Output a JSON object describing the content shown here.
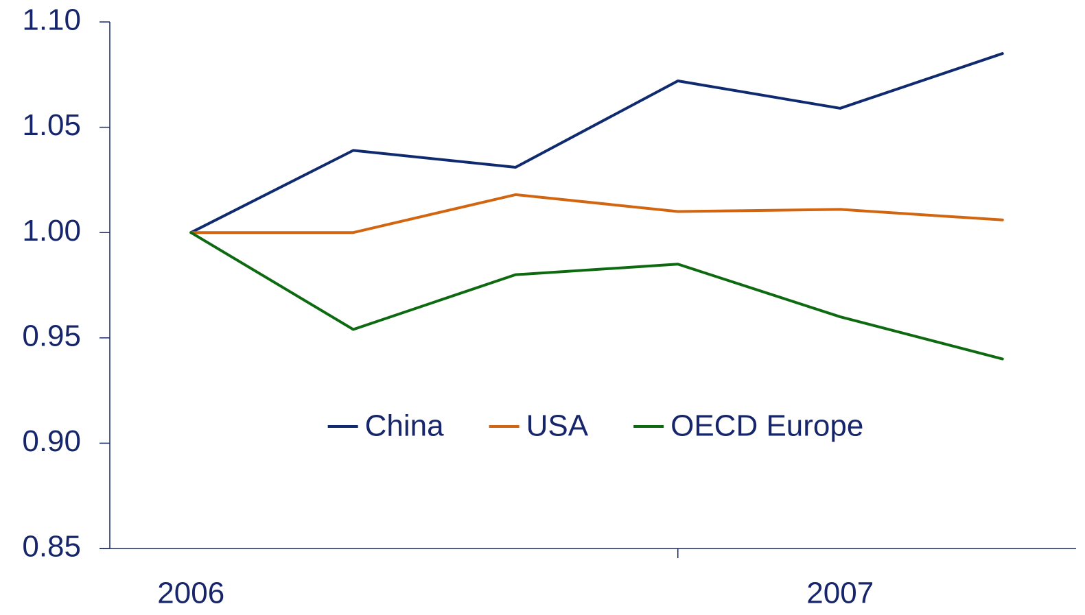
{
  "chart_data": {
    "type": "line",
    "categories": [
      "2006",
      null,
      null,
      null,
      "2007",
      null
    ],
    "series": [
      {
        "name": "China",
        "color": "#0f2a6e",
        "values": [
          1.0,
          1.039,
          1.031,
          1.072,
          1.059,
          1.085
        ]
      },
      {
        "name": "USA",
        "color": "#d2650f",
        "values": [
          1.0,
          1.0,
          1.018,
          1.01,
          1.011,
          1.006
        ]
      },
      {
        "name": "OECD Europe",
        "color": "#0e6a10",
        "values": [
          1.0,
          0.954,
          0.98,
          0.985,
          0.96,
          0.94
        ]
      }
    ],
    "ylim": [
      0.85,
      1.1
    ],
    "yticks": [
      0.85,
      {
        "value": 0.9,
        "label": "0.90"
      },
      0.95,
      {
        "value": 1.0,
        "label": "1.00"
      },
      1.05,
      {
        "value": 1.1,
        "label": "1.10"
      }
    ],
    "grid": false,
    "legend": "center"
  }
}
